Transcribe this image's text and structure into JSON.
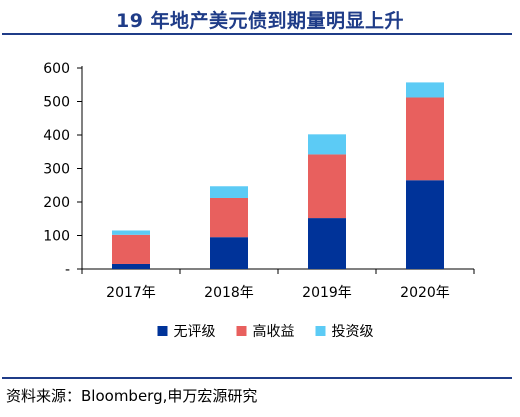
{
  "title": "19 年地产美元债到期量明显上升",
  "source": "资料来源：Bloomberg,申万宏源研究",
  "chart_data": {
    "type": "bar",
    "stacked": true,
    "title": "19 年地产美元债到期量明显上升",
    "xlabel": "",
    "ylabel": "",
    "categories": [
      "2017年",
      "2018年",
      "2019年",
      "2020年"
    ],
    "ylim": [
      0,
      600
    ],
    "yticks": [
      0,
      100,
      200,
      300,
      400,
      500,
      600
    ],
    "ytick_labels": [
      "-",
      "100",
      "200",
      "300",
      "400",
      "500",
      "600"
    ],
    "grid": false,
    "legend_position": "bottom",
    "series": [
      {
        "name": "无评级",
        "color": "#003399",
        "values": [
          15,
          95,
          152,
          265
        ]
      },
      {
        "name": "高收益",
        "color": "#E8605E",
        "values": [
          87,
          117,
          190,
          247
        ]
      },
      {
        "name": "投资级",
        "color": "#5CCBF5",
        "values": [
          13,
          35,
          60,
          45
        ]
      }
    ]
  }
}
